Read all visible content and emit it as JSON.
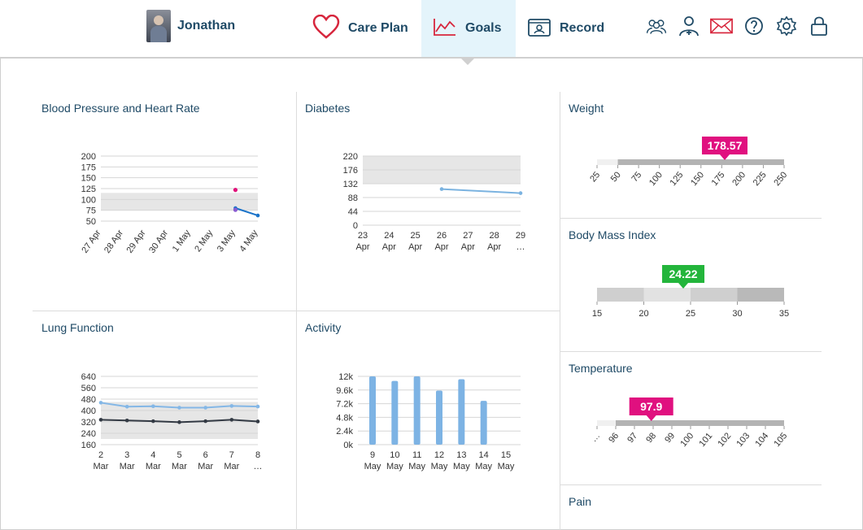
{
  "header": {
    "user_name": "Jonathan",
    "nav": [
      {
        "label": "Care Plan",
        "icon": "heart-icon"
      },
      {
        "label": "Goals",
        "icon": "trend-chart-icon",
        "active": true
      },
      {
        "label": "Record",
        "icon": "record-folder-icon"
      }
    ],
    "icons": [
      "group-icon",
      "doctor-icon",
      "mail-icon",
      "help-icon",
      "gear-icon",
      "lock-icon"
    ]
  },
  "cards": {
    "bp": {
      "title": "Blood Pressure and Heart Rate"
    },
    "diabetes": {
      "title": "Diabetes"
    },
    "lung": {
      "title": "Lung Function"
    },
    "activity": {
      "title": "Activity"
    },
    "weight": {
      "title": "Weight",
      "value": "178.57"
    },
    "bmi": {
      "title": "Body Mass Index",
      "value": "24.22"
    },
    "temperature": {
      "title": "Temperature",
      "value": "97.9"
    },
    "pain": {
      "title": "Pain"
    }
  },
  "chart_data": [
    {
      "type": "line",
      "id": "bp",
      "title": "Blood Pressure and Heart Rate",
      "categories": [
        [
          "27",
          "Apr"
        ],
        [
          "28",
          "Apr"
        ],
        [
          "29",
          "Apr"
        ],
        [
          "30",
          "Apr"
        ],
        [
          "1",
          "May"
        ],
        [
          "2",
          "May"
        ],
        [
          "3",
          "May"
        ],
        [
          "4",
          "May"
        ]
      ],
      "ylim": [
        50,
        200
      ],
      "yticks": [
        200,
        175,
        150,
        125,
        100,
        75,
        50
      ],
      "band": [
        75,
        115
      ],
      "series": [
        {
          "values": [
            null,
            null,
            null,
            null,
            null,
            null,
            80,
            63
          ],
          "color": "#1a73c9"
        },
        {
          "values": [
            null,
            null,
            null,
            null,
            null,
            null,
            122,
            null
          ],
          "color": "#e0127a",
          "points_only": true
        },
        {
          "values": [
            null,
            null,
            null,
            null,
            null,
            null,
            76,
            null
          ],
          "color": "#8a5cd1",
          "points_only": true
        }
      ]
    },
    {
      "type": "line",
      "id": "diabetes",
      "title": "Diabetes",
      "categories": [
        [
          "23",
          "Apr"
        ],
        [
          "24",
          "Apr"
        ],
        [
          "25",
          "Apr"
        ],
        [
          "26",
          "Apr"
        ],
        [
          "27",
          "Apr"
        ],
        [
          "28",
          "Apr"
        ],
        [
          "29",
          "…"
        ]
      ],
      "ylim": [
        0,
        220
      ],
      "yticks": [
        220,
        176,
        132,
        88,
        44,
        0
      ],
      "band": [
        132,
        220
      ],
      "series": [
        {
          "values": [
            null,
            null,
            null,
            115,
            null,
            null,
            102
          ],
          "color": "#7bb3e0"
        }
      ]
    },
    {
      "type": "line",
      "id": "lung",
      "title": "Lung Function",
      "categories": [
        [
          "2",
          "Mar"
        ],
        [
          "3",
          "Mar"
        ],
        [
          "4",
          "Mar"
        ],
        [
          "5",
          "Mar"
        ],
        [
          "6",
          "Mar"
        ],
        [
          "7",
          "Mar"
        ],
        [
          "8",
          "…"
        ]
      ],
      "ylim": [
        160,
        640
      ],
      "yticks": [
        640,
        560,
        480,
        400,
        320,
        240,
        160
      ],
      "band": [
        200,
        460
      ],
      "series": [
        {
          "values": [
            455,
            427,
            430,
            420,
            420,
            432,
            428
          ],
          "color": "#84b7e6"
        },
        {
          "values": [
            335,
            330,
            325,
            318,
            325,
            335,
            323
          ],
          "color": "#333a44"
        }
      ]
    },
    {
      "type": "bar",
      "id": "activity",
      "title": "Activity",
      "categories": [
        [
          "9",
          "May"
        ],
        [
          "10",
          "May"
        ],
        [
          "11",
          "May"
        ],
        [
          "12",
          "May"
        ],
        [
          "13",
          "May"
        ],
        [
          "14",
          "May"
        ],
        [
          "15",
          "May"
        ]
      ],
      "ylim": [
        0,
        12000
      ],
      "yticks": [
        "12k",
        "9.6k",
        "7.2k",
        "4.8k",
        "2.4k",
        "0k"
      ],
      "values": [
        12000,
        11200,
        12000,
        9500,
        11500,
        7700,
        0
      ],
      "color": "#7db3e4"
    },
    {
      "type": "gauge",
      "id": "weight",
      "value": 178.57,
      "ticks": [
        25,
        50,
        75,
        100,
        125,
        150,
        175,
        200,
        225,
        250
      ],
      "color": "#e0107f"
    },
    {
      "type": "gauge",
      "id": "bmi",
      "value": 24.22,
      "ticks": [
        15,
        20,
        25,
        30,
        35
      ],
      "color": "#23b53b"
    },
    {
      "type": "gauge",
      "id": "temperature",
      "value": 97.9,
      "ticks": [
        "…",
        96,
        97,
        98,
        99,
        100,
        101,
        102,
        103,
        104,
        105
      ],
      "color": "#e0107f"
    }
  ]
}
